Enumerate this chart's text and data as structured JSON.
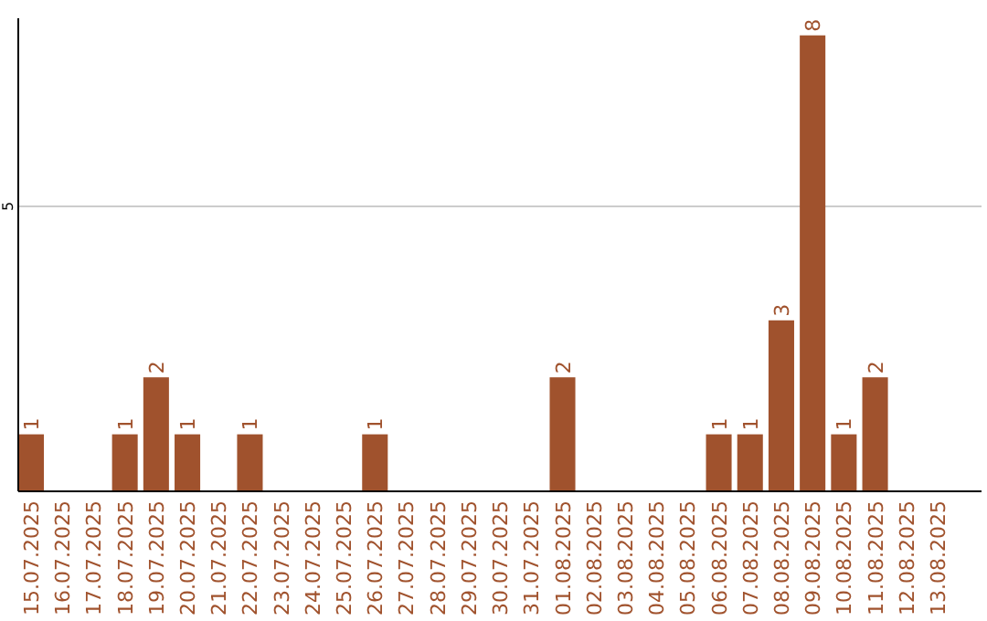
{
  "chart_data": {
    "type": "bar",
    "categories": [
      "15.07.2025",
      "16.07.2025",
      "17.07.2025",
      "18.07.2025",
      "19.07.2025",
      "20.07.2025",
      "21.07.2025",
      "22.07.2025",
      "23.07.2025",
      "24.07.2025",
      "25.07.2025",
      "26.07.2025",
      "27.07.2025",
      "28.07.2025",
      "29.07.2025",
      "30.07.2025",
      "31.07.2025",
      "01.08.2025",
      "02.08.2025",
      "03.08.2025",
      "04.08.2025",
      "05.08.2025",
      "06.08.2025",
      "07.08.2025",
      "08.08.2025",
      "09.08.2025",
      "10.08.2025",
      "11.08.2025",
      "12.08.2025",
      "13.08.2025"
    ],
    "values": [
      1,
      0,
      0,
      1,
      2,
      1,
      0,
      1,
      0,
      0,
      0,
      1,
      0,
      0,
      0,
      0,
      0,
      2,
      0,
      0,
      0,
      0,
      1,
      1,
      3,
      8,
      1,
      2,
      0,
      0
    ],
    "value_labels": [
      "1",
      null,
      null,
      "1",
      "2",
      "1",
      null,
      "1",
      null,
      null,
      null,
      "1",
      null,
      null,
      null,
      null,
      null,
      "2",
      null,
      null,
      null,
      null,
      "1",
      "1",
      "3",
      "8",
      "1",
      "2",
      null,
      null
    ],
    "color": "#a0522d",
    "ylim": [
      0,
      8.3
    ],
    "yticks": [
      5
    ],
    "grid": "y"
  }
}
